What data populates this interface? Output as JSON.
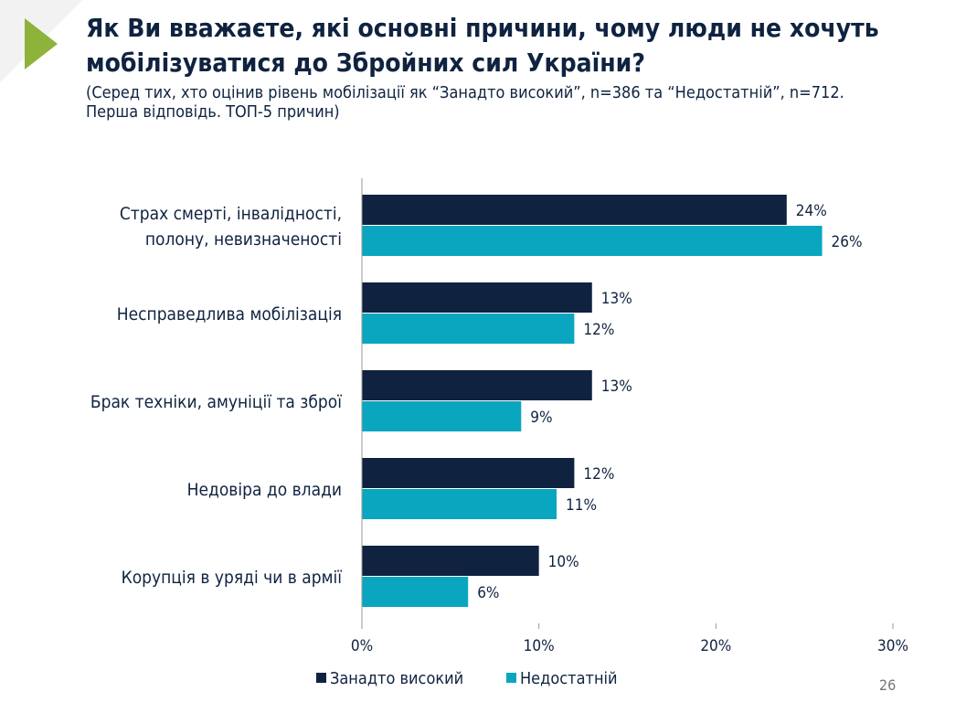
{
  "title": "Як Ви вважаєте, які основні причини, чому люди не хочуть мобілізуватися до Збройних сил України?",
  "subtitle": "(Серед тих, хто оцінив рівень мобілізації як “Занадто високий”, n=386 та “Недостатній”, n=712. Перша відповідь. ТОП-5 причин)",
  "page_number": "26",
  "colors": {
    "accent": "#8db33a",
    "series1": "#0f2340",
    "series2": "#0aa6c0"
  },
  "chart_data": {
    "type": "bar",
    "orientation": "horizontal",
    "categories": [
      "Страх смерті, інвалідності, полону, невизначеності",
      "Несправедлива мобілізація",
      "Брак техніки, амуніції та зброї",
      "Недовіра до влади",
      "Корупція в уряді чи в армії"
    ],
    "category_lines": [
      [
        "Страх смерті, інвалідності,",
        "полону, невизначеності"
      ],
      [
        "Несправедлива мобілізація"
      ],
      [
        "Брак техніки, амуніції та зброї"
      ],
      [
        "Недовіра до влади"
      ],
      [
        "Корупція в уряді чи в армії"
      ]
    ],
    "series": [
      {
        "name": "Занадто високий",
        "values": [
          24,
          13,
          13,
          12,
          10
        ],
        "color": "#0f2340"
      },
      {
        "name": "Недостатній",
        "values": [
          26,
          12,
          9,
          11,
          6
        ],
        "color": "#0aa6c0"
      }
    ],
    "xlim": [
      0,
      30
    ],
    "xticks": [
      0,
      10,
      20,
      30
    ],
    "tick_labels": [
      "0%",
      "10%",
      "20%",
      "30%"
    ],
    "value_suffix": "%",
    "grid": false,
    "legend": "bottom"
  }
}
